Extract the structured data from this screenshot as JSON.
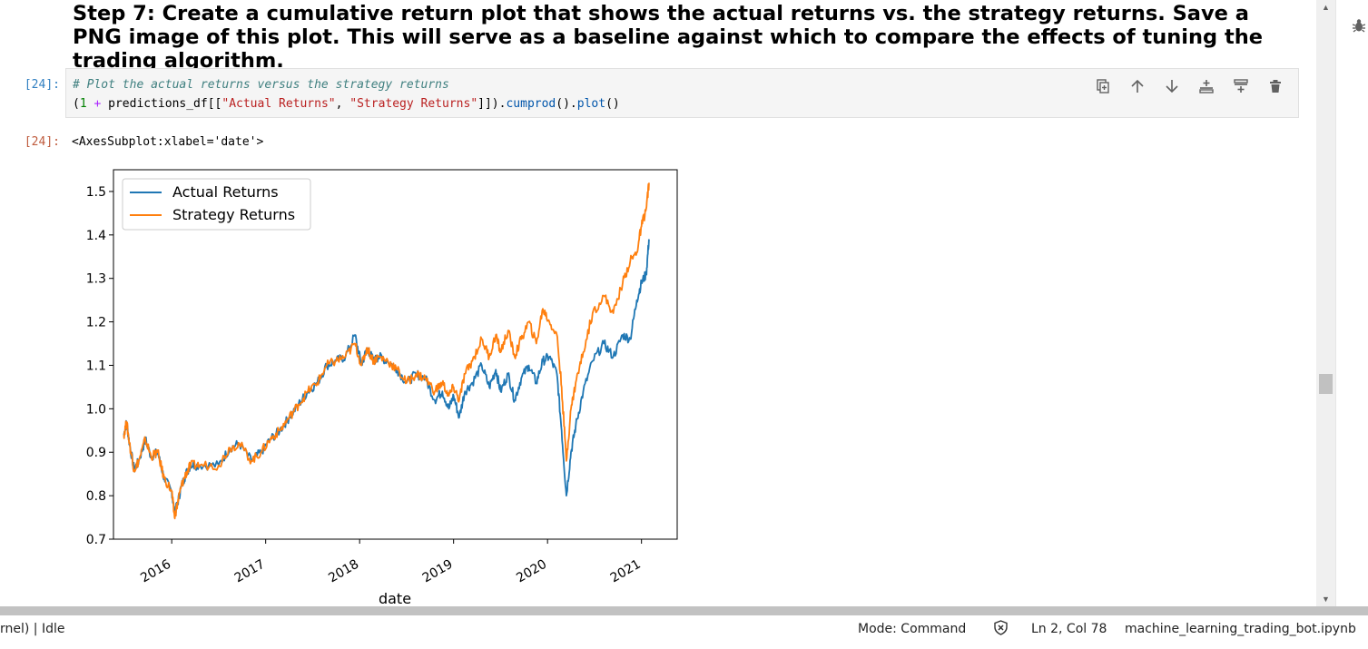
{
  "heading": "Step 7: Create a cumulative return plot that shows the actual returns vs. the strategy returns. Save a PNG image of this plot. This will serve as a baseline against which to compare the effects of tuning the trading algorithm.",
  "input_prompt": "[24]:",
  "output_prompt": "[24]:",
  "code": {
    "comment": "# Plot the actual returns versus the strategy returns",
    "open": "(",
    "num": "1",
    "plus": " + ",
    "df_part": "predictions_df[[",
    "str1": "\"Actual Returns\"",
    "sep": ", ",
    "str2": "\"Strategy Returns\"",
    "close": "]]).",
    "m1": "cumprod",
    "mid": "().",
    "m2": "plot",
    "end": "()"
  },
  "toolbar_icons": [
    "duplicate-icon",
    "move-up-icon",
    "move-down-icon",
    "insert-above-icon",
    "insert-below-icon",
    "delete-icon"
  ],
  "output_repr": "<AxesSubplot:xlabel='date'>",
  "chart_data": {
    "type": "line",
    "xlabel": "date",
    "ylabel": "",
    "title": "",
    "xlim": [
      2015.38,
      2021.38
    ],
    "ylim": [
      0.7,
      1.55
    ],
    "xticks": [
      2016,
      2017,
      2018,
      2019,
      2020,
      2021
    ],
    "xtick_labels": [
      "2016",
      "2017",
      "2018",
      "2019",
      "2020",
      "2021"
    ],
    "yticks": [
      0.7,
      0.8,
      0.9,
      1.0,
      1.1,
      1.2,
      1.3,
      1.4,
      1.5
    ],
    "ytick_labels": [
      "0.7",
      "0.8",
      "0.9",
      "1.0",
      "1.1",
      "1.2",
      "1.3",
      "1.4",
      "1.5"
    ],
    "grid": false,
    "legend_position": "top-left",
    "series": [
      {
        "name": "Actual Returns",
        "color": "#1f77b4",
        "x": [
          2015.49,
          2015.52,
          2015.55,
          2015.6,
          2015.65,
          2015.72,
          2015.78,
          2015.85,
          2015.92,
          2016.0,
          2016.03,
          2016.06,
          2016.1,
          2016.15,
          2016.2,
          2016.3,
          2016.5,
          2016.62,
          2016.72,
          2016.85,
          2016.95,
          2017.05,
          2017.15,
          2017.25,
          2017.35,
          2017.45,
          2017.55,
          2017.65,
          2017.75,
          2017.85,
          2017.95,
          2018.02,
          2018.08,
          2018.15,
          2018.2,
          2018.3,
          2018.4,
          2018.5,
          2018.6,
          2018.7,
          2018.8,
          2018.88,
          2018.95,
          2019.0,
          2019.06,
          2019.12,
          2019.2,
          2019.3,
          2019.38,
          2019.45,
          2019.5,
          2019.58,
          2019.65,
          2019.72,
          2019.8,
          2019.88,
          2019.95,
          2020.02,
          2020.1,
          2020.15,
          2020.2,
          2020.25,
          2020.3,
          2020.38,
          2020.48,
          2020.6,
          2020.7,
          2020.8,
          2020.88,
          2020.95,
          2021.0,
          2021.05,
          2021.08
        ],
        "y": [
          0.94,
          0.97,
          0.92,
          0.86,
          0.88,
          0.93,
          0.89,
          0.9,
          0.84,
          0.81,
          0.76,
          0.78,
          0.82,
          0.85,
          0.87,
          0.87,
          0.87,
          0.91,
          0.92,
          0.88,
          0.9,
          0.93,
          0.95,
          0.98,
          1.01,
          1.04,
          1.06,
          1.1,
          1.11,
          1.12,
          1.17,
          1.1,
          1.14,
          1.11,
          1.12,
          1.11,
          1.09,
          1.06,
          1.08,
          1.07,
          1.02,
          1.04,
          1.0,
          1.03,
          0.98,
          1.04,
          1.06,
          1.1,
          1.05,
          1.09,
          1.04,
          1.08,
          1.02,
          1.07,
          1.1,
          1.06,
          1.11,
          1.12,
          1.08,
          0.95,
          0.8,
          0.9,
          0.96,
          1.04,
          1.11,
          1.15,
          1.12,
          1.17,
          1.16,
          1.25,
          1.29,
          1.31,
          1.39
        ]
      },
      {
        "name": "Strategy Returns",
        "color": "#ff7f0e",
        "x": [
          2015.49,
          2015.52,
          2015.55,
          2015.6,
          2015.65,
          2015.72,
          2015.78,
          2015.85,
          2015.92,
          2016.0,
          2016.03,
          2016.06,
          2016.1,
          2016.15,
          2016.2,
          2016.3,
          2016.5,
          2016.62,
          2016.72,
          2016.85,
          2016.95,
          2017.05,
          2017.15,
          2017.25,
          2017.35,
          2017.45,
          2017.55,
          2017.65,
          2017.75,
          2017.85,
          2017.95,
          2018.02,
          2018.08,
          2018.15,
          2018.2,
          2018.3,
          2018.4,
          2018.5,
          2018.6,
          2018.7,
          2018.8,
          2018.88,
          2018.95,
          2019.0,
          2019.06,
          2019.12,
          2019.2,
          2019.3,
          2019.38,
          2019.45,
          2019.5,
          2019.58,
          2019.65,
          2019.72,
          2019.8,
          2019.88,
          2019.95,
          2020.02,
          2020.1,
          2020.15,
          2020.2,
          2020.25,
          2020.3,
          2020.38,
          2020.48,
          2020.6,
          2020.7,
          2020.8,
          2020.88,
          2020.95,
          2021.0,
          2021.05,
          2021.08
        ],
        "y": [
          0.94,
          0.97,
          0.92,
          0.86,
          0.88,
          0.93,
          0.89,
          0.9,
          0.84,
          0.81,
          0.75,
          0.78,
          0.82,
          0.85,
          0.87,
          0.87,
          0.87,
          0.91,
          0.92,
          0.88,
          0.9,
          0.93,
          0.95,
          0.98,
          1.01,
          1.04,
          1.06,
          1.1,
          1.11,
          1.12,
          1.15,
          1.1,
          1.14,
          1.11,
          1.12,
          1.11,
          1.09,
          1.06,
          1.08,
          1.07,
          1.04,
          1.06,
          1.03,
          1.05,
          1.02,
          1.08,
          1.11,
          1.16,
          1.12,
          1.17,
          1.13,
          1.18,
          1.12,
          1.16,
          1.2,
          1.15,
          1.23,
          1.2,
          1.17,
          1.05,
          0.88,
          1.0,
          1.06,
          1.13,
          1.22,
          1.26,
          1.22,
          1.29,
          1.34,
          1.36,
          1.42,
          1.46,
          1.52
        ]
      }
    ]
  },
  "status": {
    "left": "rnel) | Idle",
    "mode": "Mode: Command",
    "position": "Ln 2, Col 78",
    "filename": "machine_learning_trading_bot.ipynb"
  }
}
